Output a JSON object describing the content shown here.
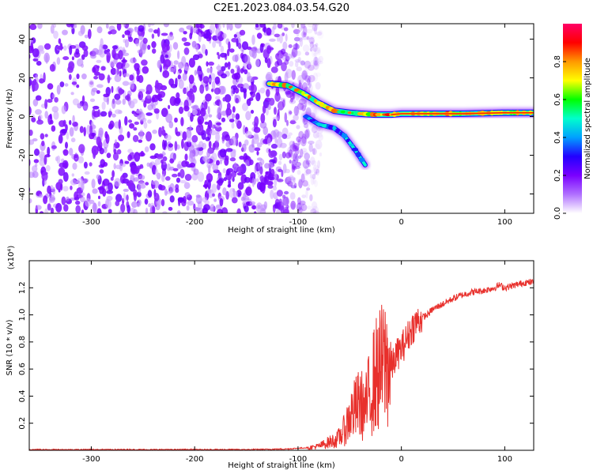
{
  "figure_title": "C2E1.2023.084.03.54.G20",
  "chart_data": [
    {
      "type": "heatmap",
      "title": "",
      "xlabel": "Height of straight line (km)",
      "ylabel": "Frequency (Hz)",
      "xlim": [
        -360,
        128
      ],
      "ylim": [
        -50,
        48
      ],
      "xticks": [
        -300,
        -200,
        -100,
        0,
        100
      ],
      "yticks": [
        -40,
        -20,
        0,
        20,
        40
      ],
      "colorbar": {
        "label": "Normalized spectral amplitude",
        "range": [
          0,
          1
        ],
        "ticks": [
          0.0,
          0.2,
          0.4,
          0.6,
          0.8
        ],
        "colormap": "rainbow",
        "stops": [
          "#ffffff",
          "#b070ff",
          "#7a00ff",
          "#2200ff",
          "#00a0ff",
          "#00ffcc",
          "#00ff00",
          "#ffff00",
          "#ff9900",
          "#ff0000",
          "#ff0066"
        ]
      },
      "features": [
        {
          "name": "noise region",
          "x_range": [
            -360,
            -85
          ],
          "y_range": [
            -50,
            48
          ],
          "amplitude": 0.1
        },
        {
          "name": "signal track",
          "points": [
            [
              -128,
              17
            ],
            [
              -110,
              16
            ],
            [
              -95,
              12
            ],
            [
              -80,
              7
            ],
            [
              -65,
              3
            ],
            [
              -50,
              2
            ],
            [
              -40,
              1.5
            ],
            [
              -25,
              1
            ],
            [
              -10,
              1
            ],
            [
              0,
              1.5
            ],
            [
              20,
              1.5
            ],
            [
              60,
              1.5
            ],
            [
              100,
              2
            ],
            [
              128,
              2
            ]
          ],
          "peak_amplitude": 0.9
        },
        {
          "name": "secondary branch",
          "points": [
            [
              -92,
              0
            ],
            [
              -80,
              -4
            ],
            [
              -65,
              -6
            ],
            [
              -55,
              -10
            ],
            [
              -45,
              -17
            ],
            [
              -35,
              -25
            ]
          ],
          "peak_amplitude": 0.5
        }
      ]
    },
    {
      "type": "line",
      "title": "",
      "xlabel": "Height of straight line (km)",
      "ylabel": "SNR (10 * v/v)",
      "y_multiplier": "(x10⁴)",
      "xlim": [
        -360,
        128
      ],
      "ylim": [
        0,
        1.4
      ],
      "xticks": [
        -300,
        -200,
        -100,
        0,
        100
      ],
      "yticks": [
        0.2,
        0.4,
        0.6,
        0.8,
        1.0,
        1.2
      ],
      "line_color": "#e8302c",
      "series": [
        {
          "name": "",
          "x": [
            -360,
            -300,
            -250,
            -200,
            -150,
            -110,
            -90,
            -80,
            -70,
            -62,
            -55,
            -50,
            -45,
            -40,
            -35,
            -30,
            -25,
            -20,
            -15,
            -10,
            -5,
            0,
            5,
            10,
            15,
            20,
            25,
            30,
            40,
            50,
            60,
            70,
            80,
            90,
            95,
            100,
            110,
            120,
            128
          ],
          "y": [
            0.005,
            0.005,
            0.005,
            0.005,
            0.005,
            0.01,
            0.02,
            0.03,
            0.06,
            0.08,
            0.15,
            0.25,
            0.3,
            0.35,
            0.3,
            0.45,
            0.55,
            0.6,
            0.65,
            0.6,
            0.7,
            0.75,
            0.82,
            0.9,
            0.95,
            0.98,
            1.0,
            1.04,
            1.08,
            1.12,
            1.15,
            1.17,
            1.18,
            1.2,
            1.22,
            1.2,
            1.22,
            1.24,
            1.24
          ]
        }
      ]
    }
  ]
}
